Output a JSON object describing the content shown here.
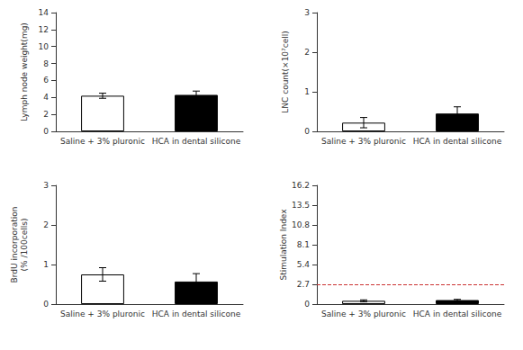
{
  "chart_data": [
    {
      "type": "bar",
      "ylabel": "Lymph node weight(mg)",
      "categories": [
        "Saline + 3% pluronic",
        "HCA in dental silicone"
      ],
      "values": [
        4.2,
        4.3
      ],
      "errors": [
        0.3,
        0.45
      ],
      "colors": [
        "white",
        "black"
      ],
      "ylim": [
        0,
        14
      ],
      "yticks": [
        0,
        2,
        4,
        6,
        8,
        10,
        12,
        14
      ],
      "grid": false
    },
    {
      "type": "bar",
      "ylabel": "LNC count(×10⁷cell)",
      "categories": [
        "Saline + 3% pluronic",
        "HCA in dental silicone"
      ],
      "values": [
        0.22,
        0.45
      ],
      "errors": [
        0.13,
        0.17
      ],
      "colors": [
        "white",
        "black"
      ],
      "ylim": [
        0,
        3
      ],
      "yticks": [
        0,
        1,
        2,
        3
      ],
      "grid": false
    },
    {
      "type": "bar",
      "ylabel": "BrdU incorporation\n(% /100cells)",
      "categories": [
        "Saline + 3% pluronic",
        "HCA in dental silicone"
      ],
      "values": [
        0.75,
        0.57
      ],
      "errors": [
        0.17,
        0.2
      ],
      "colors": [
        "white",
        "black"
      ],
      "ylim": [
        0,
        3
      ],
      "yticks": [
        0,
        1,
        2,
        3
      ],
      "grid": false
    },
    {
      "type": "bar",
      "ylabel": "Stimulation Index",
      "categories": [
        "Saline + 3% pluronic",
        "HCA in dental silicone"
      ],
      "values": [
        0.45,
        0.55
      ],
      "errors": [
        0.13,
        0.1
      ],
      "colors": [
        "white",
        "black"
      ],
      "ylim": [
        0,
        16.2
      ],
      "yticks": [
        0,
        2.7,
        5.4,
        8.1,
        10.8,
        13.5,
        16.2
      ],
      "grid": false,
      "hlines": [
        {
          "y": 2.7,
          "color": "#cc3333",
          "line_style": "dashed"
        }
      ]
    }
  ]
}
